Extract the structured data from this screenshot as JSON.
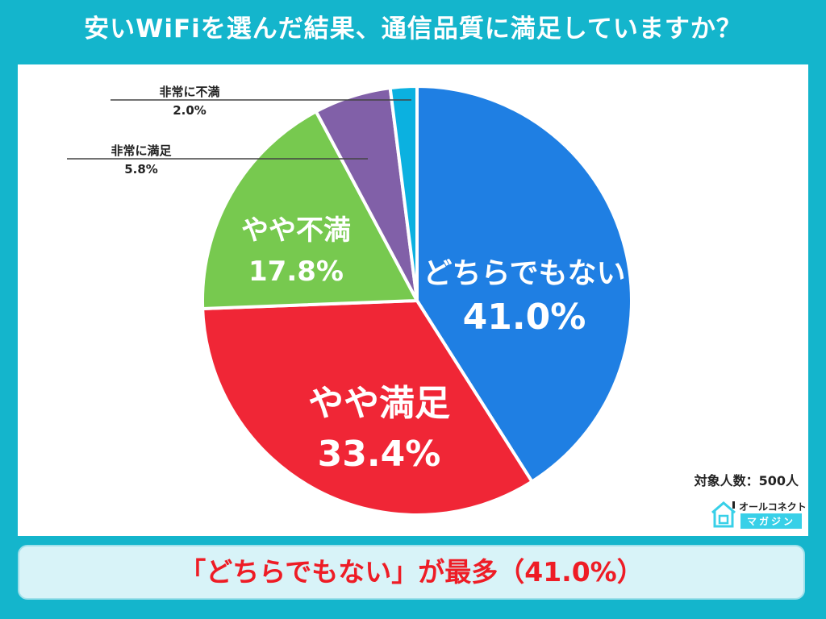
{
  "title": "安いWiFiを選んだ結果、通信品質に満足していますか？",
  "chart_data": {
    "type": "pie",
    "title": "安いWiFiを選んだ結果、通信品質に満足していますか？",
    "start": "top",
    "direction": "clockwise",
    "slices": [
      {
        "label": "どちらでもない",
        "value": 41.0,
        "display": "41.0%",
        "color": "#1f7fe3"
      },
      {
        "label": "やや満足",
        "value": 33.4,
        "display": "33.4%",
        "color": "#f02636"
      },
      {
        "label": "やや不満",
        "value": 17.8,
        "display": "17.8%",
        "color": "#77c94f"
      },
      {
        "label": "非常に満足",
        "value": 5.8,
        "display": "5.8%",
        "color": "#8160a8"
      },
      {
        "label": "非常に不満",
        "value": 2.0,
        "display": "2.0%",
        "color": "#0bb1e0"
      }
    ]
  },
  "sample_note": "対象人数：500人",
  "logo": {
    "top": "オールコネクト",
    "bottom": "マガジン"
  },
  "conclusion": "「どちらでもない」が最多（41.0%）",
  "colors": {
    "frame": "#14b5cc",
    "banner_bg": "#d8f3f8",
    "banner_text": "#ee1c25"
  }
}
